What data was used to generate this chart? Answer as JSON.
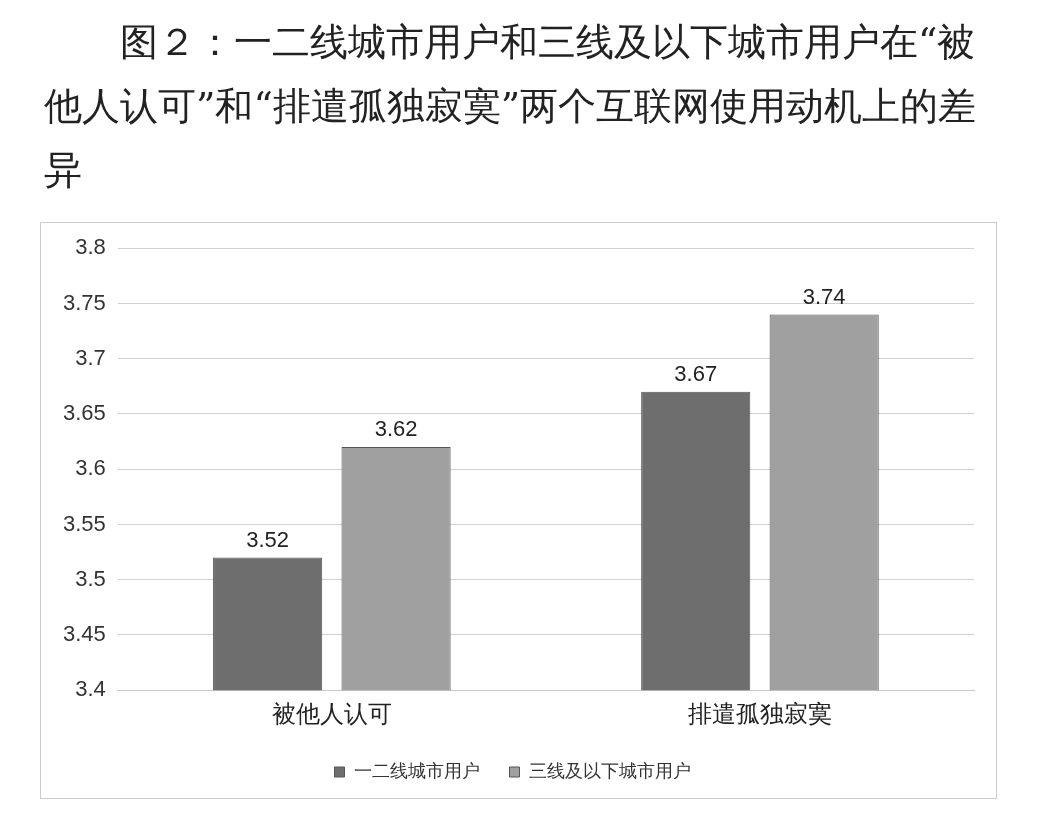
{
  "chart_data": {
    "type": "bar",
    "title": "图２：一二线城市用户和三线及以下城市用户在“被他人认可”和“排遣孤独寂寞”两个互联网使用动机上的差异",
    "categories": [
      "被他人认可",
      "排遣孤独寂寞"
    ],
    "series": [
      {
        "name": "一二线城市用户",
        "color": "#6e6e6e",
        "values": [
          3.52,
          3.67
        ]
      },
      {
        "name": "三线及以下城市用户",
        "color": "#a0a0a0",
        "values": [
          3.62,
          3.74
        ]
      }
    ],
    "ylim": [
      3.4,
      3.8
    ],
    "yticks": [
      3.4,
      3.45,
      3.5,
      3.55,
      3.6,
      3.65,
      3.7,
      3.75,
      3.8
    ],
    "grid": "y",
    "legend": "bottom",
    "data_labels": true
  }
}
